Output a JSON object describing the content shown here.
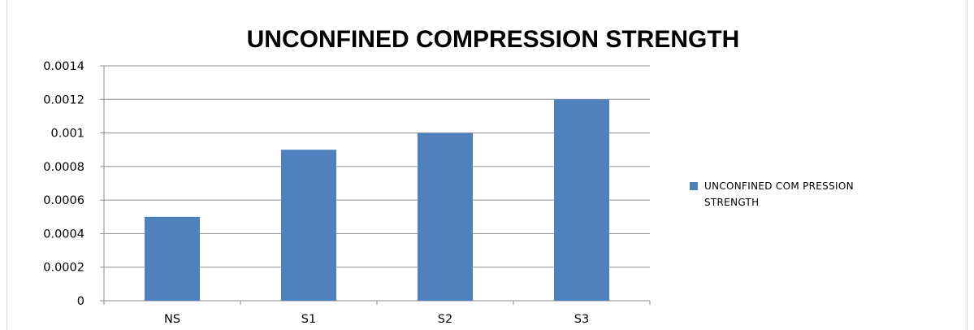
{
  "chart_data": {
    "type": "bar",
    "title": "UNCONFINED COMPRESSION STRENGTH",
    "categories": [
      "NS",
      "S1",
      "S2",
      "S3"
    ],
    "series": [
      {
        "name": "UNCONFINED COMPRESSION STRENGTH",
        "values": [
          0.0005,
          0.0009,
          0.001,
          0.0012
        ],
        "color": "#4f81bd"
      }
    ],
    "ylim": [
      0,
      0.0014
    ],
    "yticks": [
      "0",
      "0.0002",
      "0.0004",
      "0.0006",
      "0.0008",
      "0.001",
      "0.0012",
      "0.0014"
    ],
    "xlabel": "",
    "ylabel": "",
    "grid": true,
    "legend": {
      "position": "right",
      "lines": [
        "UNCONFINED COM PRESSION",
        "STRENGTH"
      ]
    }
  }
}
